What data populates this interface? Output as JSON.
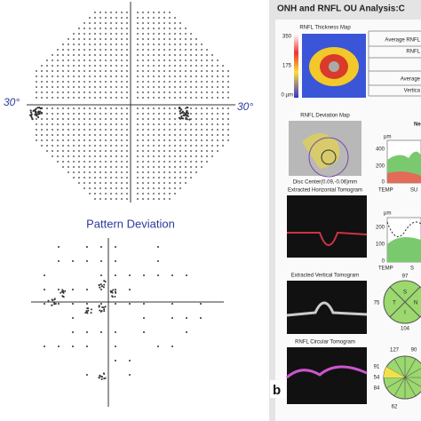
{
  "visual_field": {
    "axis_labels": [
      "30°",
      "30°"
    ],
    "pattern_deviation_title": "Pattern Deviation"
  },
  "panel_label": "b",
  "report": {
    "title": "ONH and RNFL OU Analysis:C",
    "thickness_map": {
      "title": "RNFL Thickness Map",
      "scale": [
        "350",
        "175",
        "0 µm"
      ]
    },
    "deviation_map": {
      "title": "RNFL Deviation Map",
      "disc_center": "Disc Center(0.09,-0.06)mm"
    },
    "tomograms": [
      "Extracted Horizontal Tomogram",
      "Extracted Vertical Tomogram",
      "RNFL Circular Tomogram"
    ],
    "table": [
      "Average RNFL",
      "RNFL",
      "Average",
      "Vertica"
    ],
    "section_label": "Ne",
    "chart1": {
      "unit": "µm",
      "ticks": [
        "400",
        "200",
        "0"
      ],
      "labels": [
        "TEMP",
        "SU"
      ]
    },
    "chart2": {
      "unit": "µm",
      "ticks": [
        "200",
        "100",
        "0"
      ],
      "labels": [
        "TEMP",
        "S"
      ]
    },
    "quadrants": {
      "values": [
        "97",
        "75",
        "104"
      ],
      "letters": [
        "T",
        "S",
        "I",
        "N"
      ]
    },
    "clock": {
      "values": [
        "127",
        "90",
        "91",
        "54",
        "84",
        "62"
      ]
    }
  }
}
